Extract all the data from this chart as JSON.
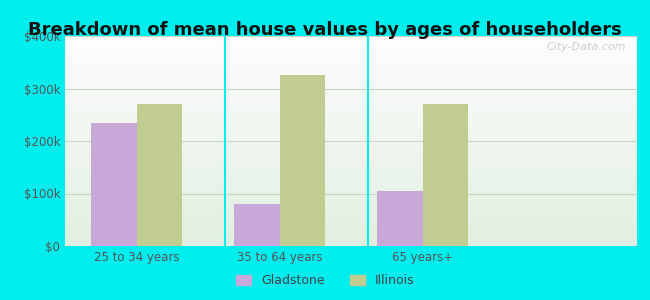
{
  "title": "Breakdown of mean house values by ages of householders",
  "categories": [
    "25 to 34 years",
    "35 to 64 years",
    "65 years+"
  ],
  "gladstone_values": [
    235000,
    80000,
    105000
  ],
  "illinois_values": [
    270000,
    325000,
    270000
  ],
  "gladstone_color": "#c8a8d8",
  "illinois_color": "#c0cc90",
  "background_color": "#00eeee",
  "ylim": [
    0,
    400000
  ],
  "yticks": [
    0,
    100000,
    200000,
    300000,
    400000
  ],
  "ytick_labels": [
    "$0",
    "$100k",
    "$200k",
    "$300k",
    "$400k"
  ],
  "grid_color": "#c8d8c0",
  "bar_width": 0.32,
  "legend_labels": [
    "Gladstone",
    "Illinois"
  ],
  "title_fontsize": 13,
  "tick_fontsize": 8.5,
  "legend_fontsize": 9
}
